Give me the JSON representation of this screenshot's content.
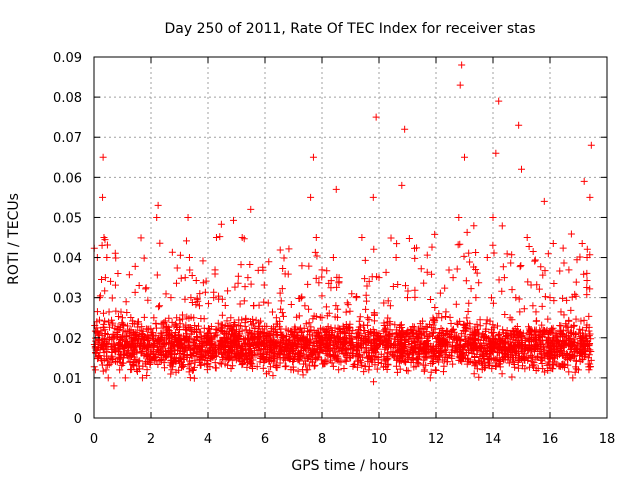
{
  "chart_data": {
    "type": "scatter",
    "title": "Day 250 of 2011, Rate Of TEC Index for receiver stas",
    "xlabel": "GPS time / hours",
    "ylabel": "ROTI / TECUs",
    "xlim": [
      0,
      18
    ],
    "ylim": [
      0,
      0.09
    ],
    "xticks": [
      0,
      2,
      4,
      6,
      8,
      10,
      12,
      14,
      16,
      18
    ],
    "yticks": [
      0,
      0.01,
      0.02,
      0.03,
      0.04,
      0.05,
      0.06,
      0.07,
      0.08,
      0.09
    ],
    "xtick_labels": [
      "0",
      "2",
      "4",
      "6",
      "8",
      "10",
      "12",
      "14",
      "16",
      "18"
    ],
    "ytick_labels": [
      "0",
      "0.01",
      "0.02",
      "0.03",
      "0.04",
      "0.05",
      "0.06",
      "0.07",
      "0.08",
      "0.09"
    ],
    "grid": true,
    "marker": "plus",
    "color": "#ff0000",
    "series": [
      {
        "x": [
          0.05,
          0.1,
          0.15,
          0.2,
          0.25,
          0.3,
          0.32,
          0.35,
          0.38,
          0.4,
          0.42,
          0.45,
          0.5,
          0.55,
          0.6,
          0.7,
          0.8,
          0.9,
          1.0,
          1.1,
          1.2,
          1.3,
          1.4,
          1.5,
          1.6,
          1.7,
          1.8,
          1.9,
          2.0,
          2.1,
          2.2,
          2.25,
          2.3,
          2.4,
          2.5,
          2.6,
          2.7,
          2.8,
          2.9,
          3.0,
          3.1,
          3.2,
          3.3,
          3.35,
          3.4,
          3.5,
          3.6,
          3.7,
          3.8,
          3.9,
          4.0,
          4.2,
          4.4,
          4.6,
          4.8,
          5.0,
          5.2,
          5.4,
          5.5,
          5.6,
          5.8,
          6.0,
          6.2,
          6.4,
          6.6,
          6.8,
          7.0,
          7.2,
          7.4,
          7.6,
          7.7,
          7.8,
          8.0,
          8.2,
          8.4,
          8.5,
          8.6,
          8.8,
          9.0,
          9.2,
          9.4,
          9.6,
          9.8,
          9.9,
          10.0,
          10.2,
          10.4,
          10.6,
          10.8,
          10.9,
          11.0,
          11.2,
          11.4,
          11.6,
          11.8,
          12.0,
          12.2,
          12.4,
          12.6,
          12.8,
          12.85,
          12.9,
          13.0,
          13.2,
          13.4,
          13.6,
          13.8,
          14.0,
          14.1,
          14.2,
          14.4,
          14.6,
          14.8,
          14.9,
          15.0,
          15.2,
          15.4,
          15.6,
          15.8,
          16.0,
          16.2,
          16.4,
          16.6,
          16.8,
          17.0,
          17.2,
          17.3,
          17.4,
          17.45
        ],
        "y": [
          0.012,
          0.024,
          0.015,
          0.03,
          0.018,
          0.055,
          0.065,
          0.045,
          0.022,
          0.035,
          0.012,
          0.04,
          0.01,
          0.02,
          0.015,
          0.008,
          0.02,
          0.012,
          0.025,
          0.01,
          0.015,
          0.022,
          0.013,
          0.012,
          0.018,
          0.01,
          0.014,
          0.02,
          0.018,
          0.025,
          0.05,
          0.053,
          0.028,
          0.02,
          0.015,
          0.022,
          0.03,
          0.018,
          0.025,
          0.022,
          0.013,
          0.035,
          0.05,
          0.04,
          0.03,
          0.025,
          0.022,
          0.028,
          0.018,
          0.015,
          0.02,
          0.03,
          0.018,
          0.015,
          0.025,
          0.022,
          0.045,
          0.035,
          0.052,
          0.028,
          0.02,
          0.018,
          0.015,
          0.025,
          0.02,
          0.015,
          0.012,
          0.022,
          0.028,
          0.055,
          0.065,
          0.045,
          0.025,
          0.018,
          0.04,
          0.057,
          0.035,
          0.02,
          0.018,
          0.03,
          0.045,
          0.025,
          0.055,
          0.075,
          0.035,
          0.022,
          0.028,
          0.04,
          0.058,
          0.072,
          0.03,
          0.015,
          0.02,
          0.012,
          0.01,
          0.015,
          0.025,
          0.018,
          0.035,
          0.05,
          0.083,
          0.088,
          0.065,
          0.02,
          0.03,
          0.018,
          0.04,
          0.05,
          0.066,
          0.079,
          0.035,
          0.025,
          0.03,
          0.073,
          0.062,
          0.045,
          0.028,
          0.02,
          0.054,
          0.03,
          0.02,
          0.018,
          0.015,
          0.01,
          0.012,
          0.059,
          0.04,
          0.055,
          0.068
        ]
      }
    ]
  }
}
